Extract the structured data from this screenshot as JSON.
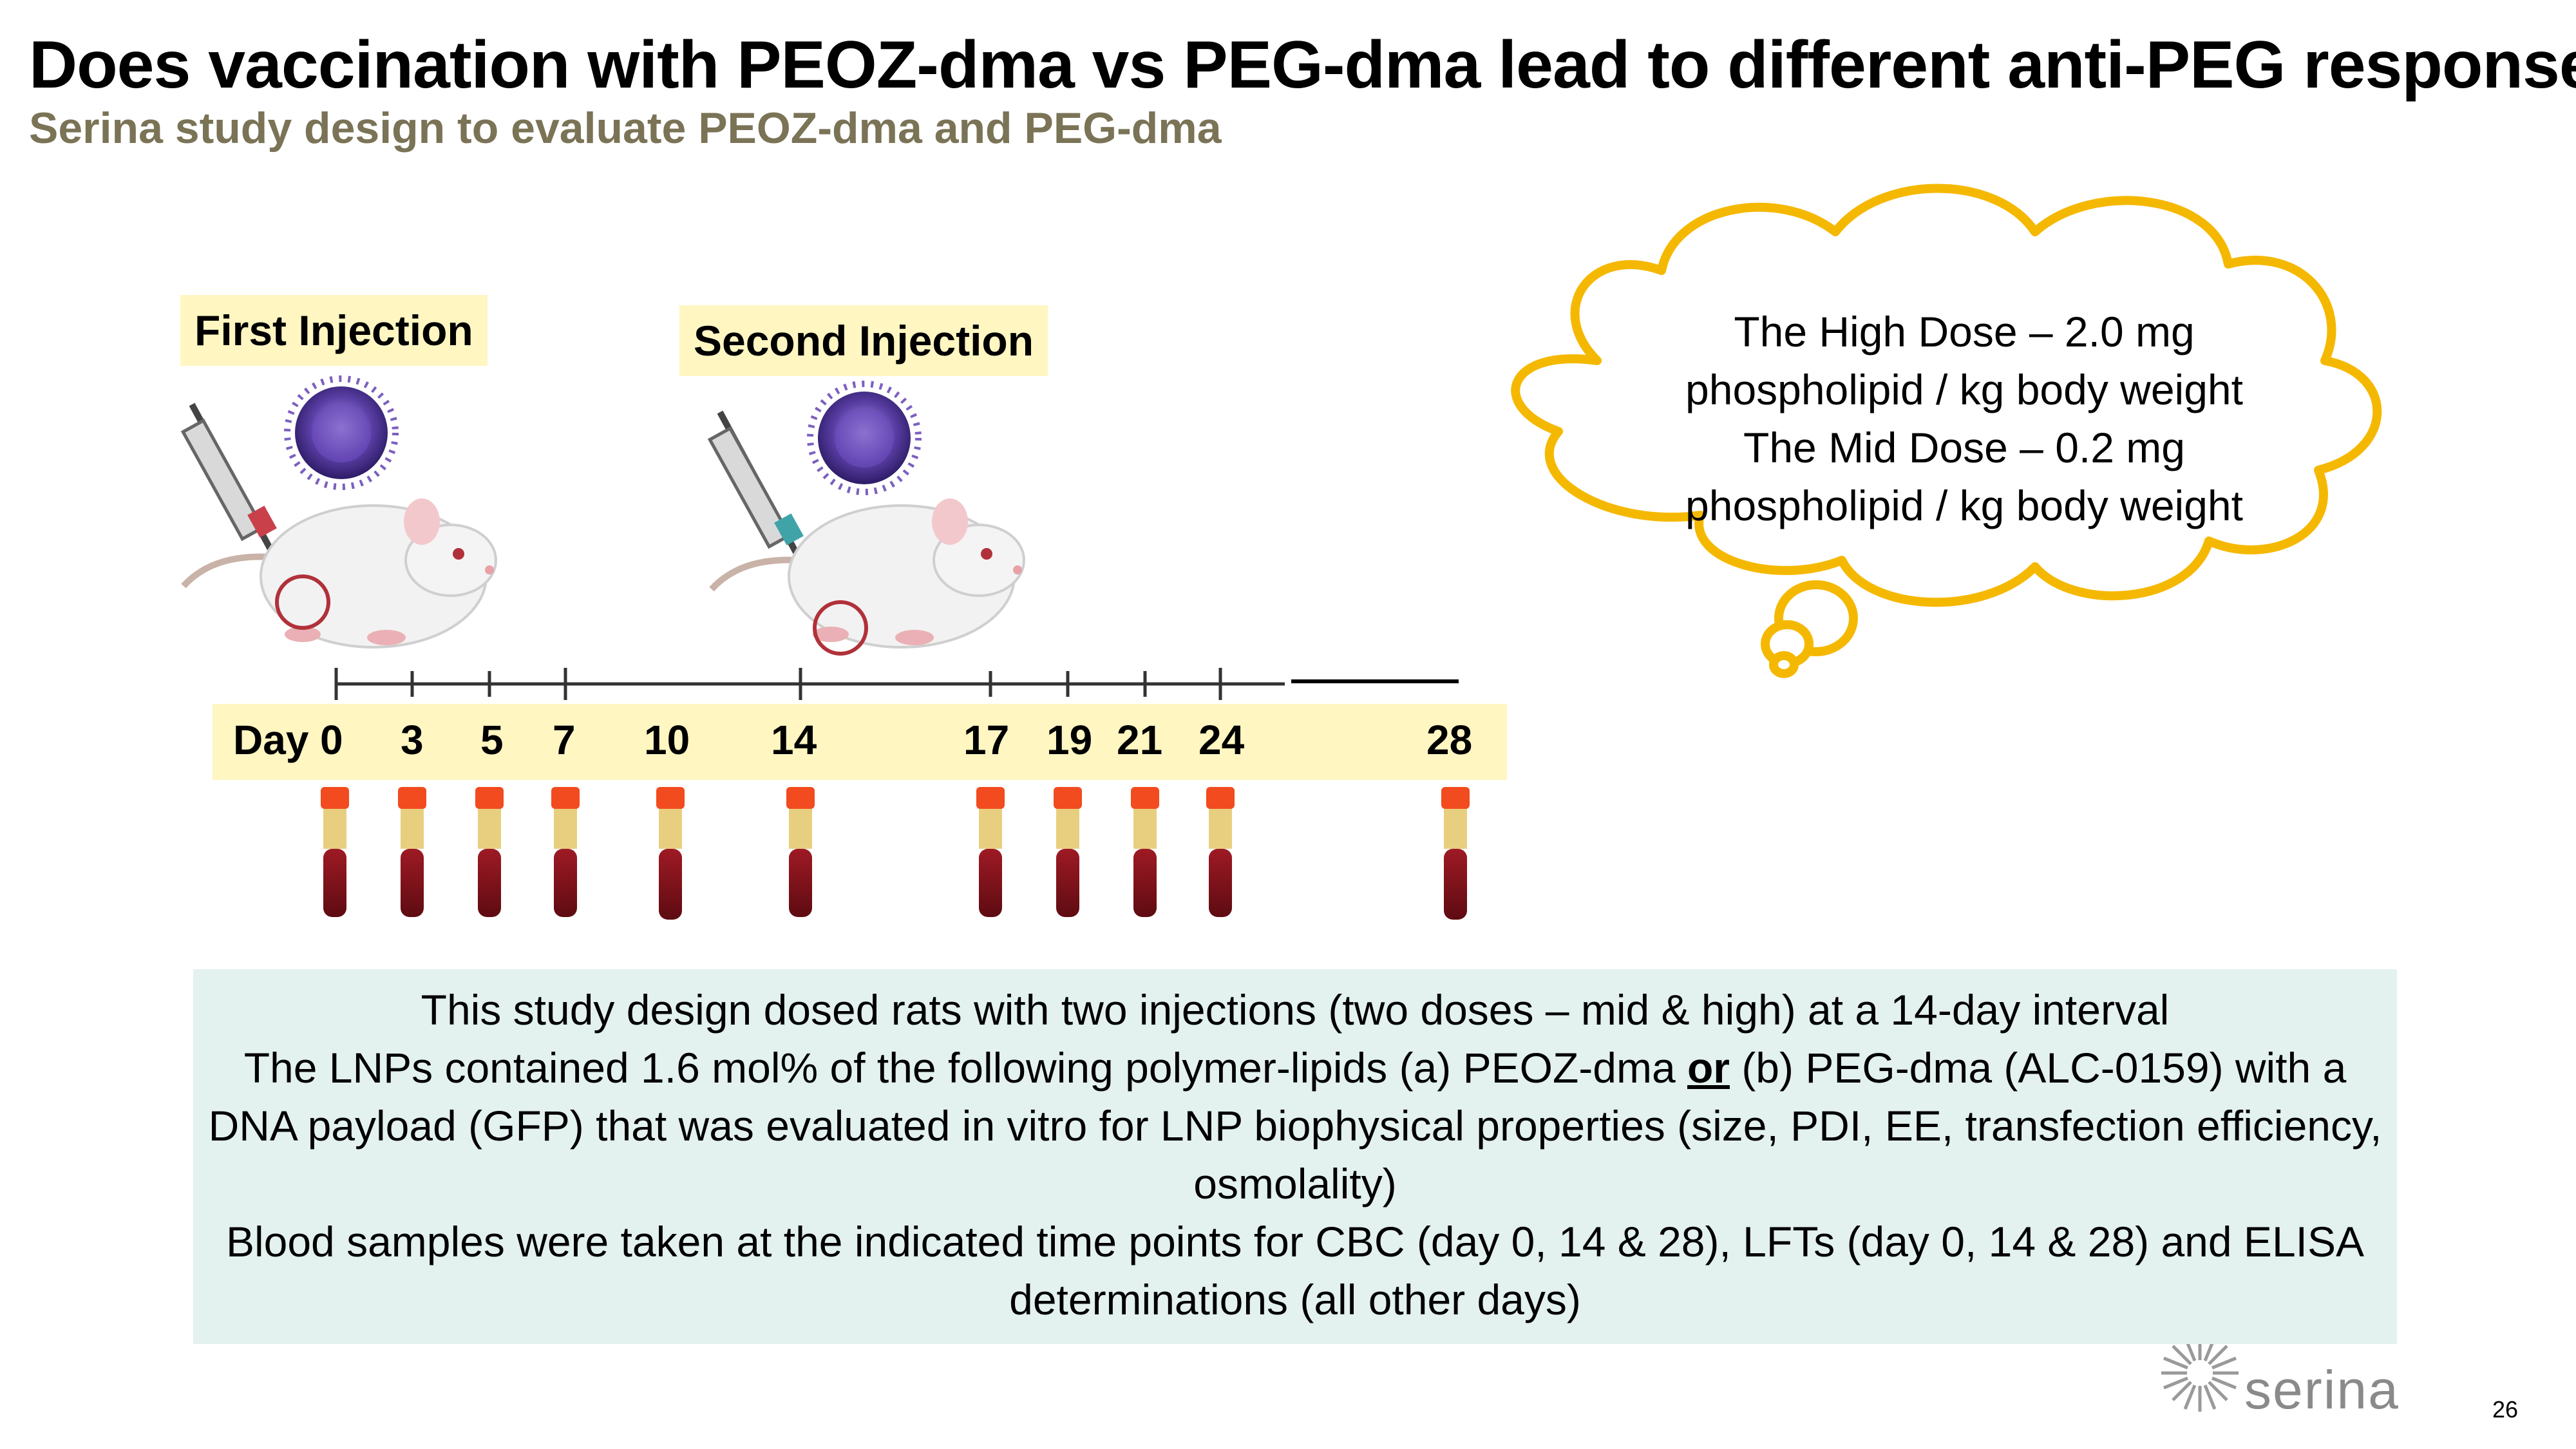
{
  "slide": {
    "title": "Does vaccination with PEOZ-dma vs PEG-dma lead to different anti-PEG response",
    "subtitle": "Serina study design to evaluate PEOZ-dma and PEG-dma",
    "page_number": "26"
  },
  "timeline": {
    "first_injection": "First Injection",
    "second_injection": "Second Injection",
    "day_prefix": "Day",
    "days": [
      "0",
      "3",
      "5",
      "7",
      "10",
      "14",
      "17",
      "19",
      "21",
      "24",
      "28"
    ]
  },
  "cloud": {
    "lines": [
      "The High Dose – 2.0 mg",
      "phospholipid / kg body weight",
      "The Mid Dose – 0.2 mg",
      "phospholipid / kg body weight"
    ]
  },
  "note": {
    "line1": "This study design dosed rats with two injections (two doses – mid & high) at a 14-day interval",
    "line2a": "The LNPs contained 1.6 mol% of the following polymer-lipids (a) PEOZ-dma ",
    "line2_or": "or",
    "line2b": " (b) PEG-dma (ALC-0159) with a DNA payload (GFP) that was evaluated in vitro for LNP biophysical properties (size, PDI, EE, transfection efficiency, osmolality)",
    "line3": "Blood samples were taken at the indicated time points for CBC (day 0, 14 & 28), LFTs (day 0, 14 & 28) and ELISA determinations (all other days)"
  },
  "brand": {
    "logo_text": "serina",
    "accent_color": "#f5b800",
    "subtitle_color": "#7a7356"
  }
}
